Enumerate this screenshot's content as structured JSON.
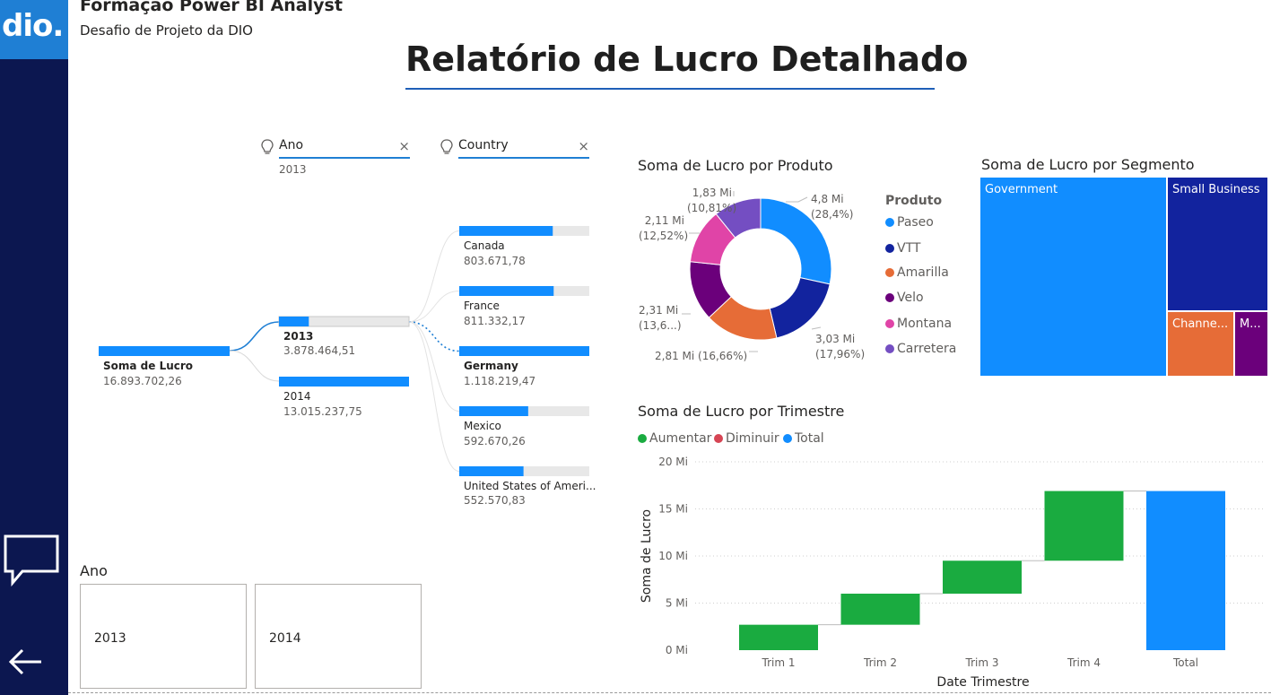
{
  "app": {
    "logo_text": "dio.",
    "title": "Formação Power BI Analyst",
    "subtitle": "Desafio de Projeto da DIO",
    "brand_color": "#1f7fd4",
    "sidebar_color": "#0c1750"
  },
  "report": {
    "title": "Relatório de Lucro Detalhado"
  },
  "filters": [
    {
      "label": "Ano",
      "value": "2013",
      "icon": "lightbulb-icon",
      "clear_icon": "close-icon"
    },
    {
      "label": "Country",
      "value": "",
      "icon": "lightbulb-icon",
      "clear_icon": "close-icon"
    }
  ],
  "decomposition_tree": {
    "root": {
      "label": "Soma de Lucro",
      "value": "16.893.702,26",
      "fill": 1.0
    },
    "years": [
      {
        "label": "2013",
        "value": "3.878.464,51",
        "fill": 0.2296,
        "selected": true
      },
      {
        "label": "2014",
        "value": "13.015.237,75",
        "fill": 1.0,
        "selected": false
      }
    ],
    "countries": [
      {
        "label": "Canada",
        "value": "803.671,78",
        "fill": 0.719,
        "selected": false
      },
      {
        "label": "France",
        "value": "811.332,17",
        "fill": 0.726,
        "selected": false
      },
      {
        "label": "Germany",
        "value": "1.118.219,47",
        "fill": 1.0,
        "selected": true
      },
      {
        "label": "Mexico",
        "value": "592.670,26",
        "fill": 0.53,
        "selected": false
      },
      {
        "label": "United States of Ameri...",
        "value": "552.570,83",
        "fill": 0.494,
        "selected": false
      }
    ]
  },
  "donut": {
    "title": "Soma de Lucro por Produto",
    "legend_title": "Produto",
    "slices": [
      {
        "name": "Paseo",
        "value": 4.8,
        "pct": 28.4,
        "color": "#118dff",
        "l1": "4,8 Mi",
        "l2": "(28,4%)"
      },
      {
        "name": "VTT",
        "value": 3.03,
        "pct": 17.96,
        "color": "#12239e",
        "l1": "3,03 Mi",
        "l2": "(17,96%)"
      },
      {
        "name": "Amarilla",
        "value": 2.81,
        "pct": 16.66,
        "color": "#e66c37",
        "l1": "2,81 Mi (16,66%)",
        "l2": ""
      },
      {
        "name": "Velo",
        "value": 2.31,
        "pct": 13.6,
        "color": "#6b007b",
        "l1": "2,31 Mi",
        "l2": "(13,6...)"
      },
      {
        "name": "Montana",
        "value": 2.11,
        "pct": 12.52,
        "color": "#e044a7",
        "l1": "2,11 Mi",
        "l2": "(12,52%)"
      },
      {
        "name": "Carretera",
        "value": 1.83,
        "pct": 10.81,
        "color": "#744ec2",
        "l1": "1,83 Mi",
        "l2": "(10,81%)"
      }
    ]
  },
  "treemap": {
    "title": "Soma de Lucro por Segmento",
    "cells": [
      {
        "label": "Government",
        "color": "#118dff"
      },
      {
        "label": "Small Business",
        "color": "#12239e"
      },
      {
        "label": "Channe...",
        "color": "#e66c37"
      },
      {
        "label": "M...",
        "color": "#6b007b"
      }
    ]
  },
  "waterfall": {
    "title": "Soma de Lucro por Trimestre",
    "legend": [
      {
        "label": "Aumentar",
        "color": "#1aab40"
      },
      {
        "label": "Diminuir",
        "color": "#d64554"
      },
      {
        "label": "Total",
        "color": "#118dff"
      }
    ],
    "y_ticks": [
      "20 Mi",
      "15 Mi",
      "10 Mi",
      "5 Mi",
      "0 Mi"
    ],
    "ylabel": "Soma de Lucro",
    "xlabel": "Date Trimestre"
  },
  "chart_data": {
    "type": "bar",
    "subtype": "waterfall",
    "title": "Soma de Lucro por Trimestre",
    "xlabel": "Date Trimestre",
    "ylabel": "Soma de Lucro",
    "categories": [
      "Trim 1",
      "Trim 2",
      "Trim 3",
      "Trim 4",
      "Total"
    ],
    "series": [
      {
        "name": "Aumentar",
        "values": [
          2.7,
          3.3,
          3.5,
          7.4,
          null
        ]
      },
      {
        "name": "Total",
        "values": [
          null,
          null,
          null,
          null,
          16.9
        ]
      }
    ],
    "ylim": [
      0,
      20
    ],
    "unit": "Mi",
    "grid": true,
    "legend": "top-left"
  },
  "slicer": {
    "title": "Ano",
    "options": [
      "2013",
      "2014"
    ]
  },
  "nav": {
    "comment_icon": "speech-bubble-icon",
    "back_icon": "arrow-left-icon"
  }
}
